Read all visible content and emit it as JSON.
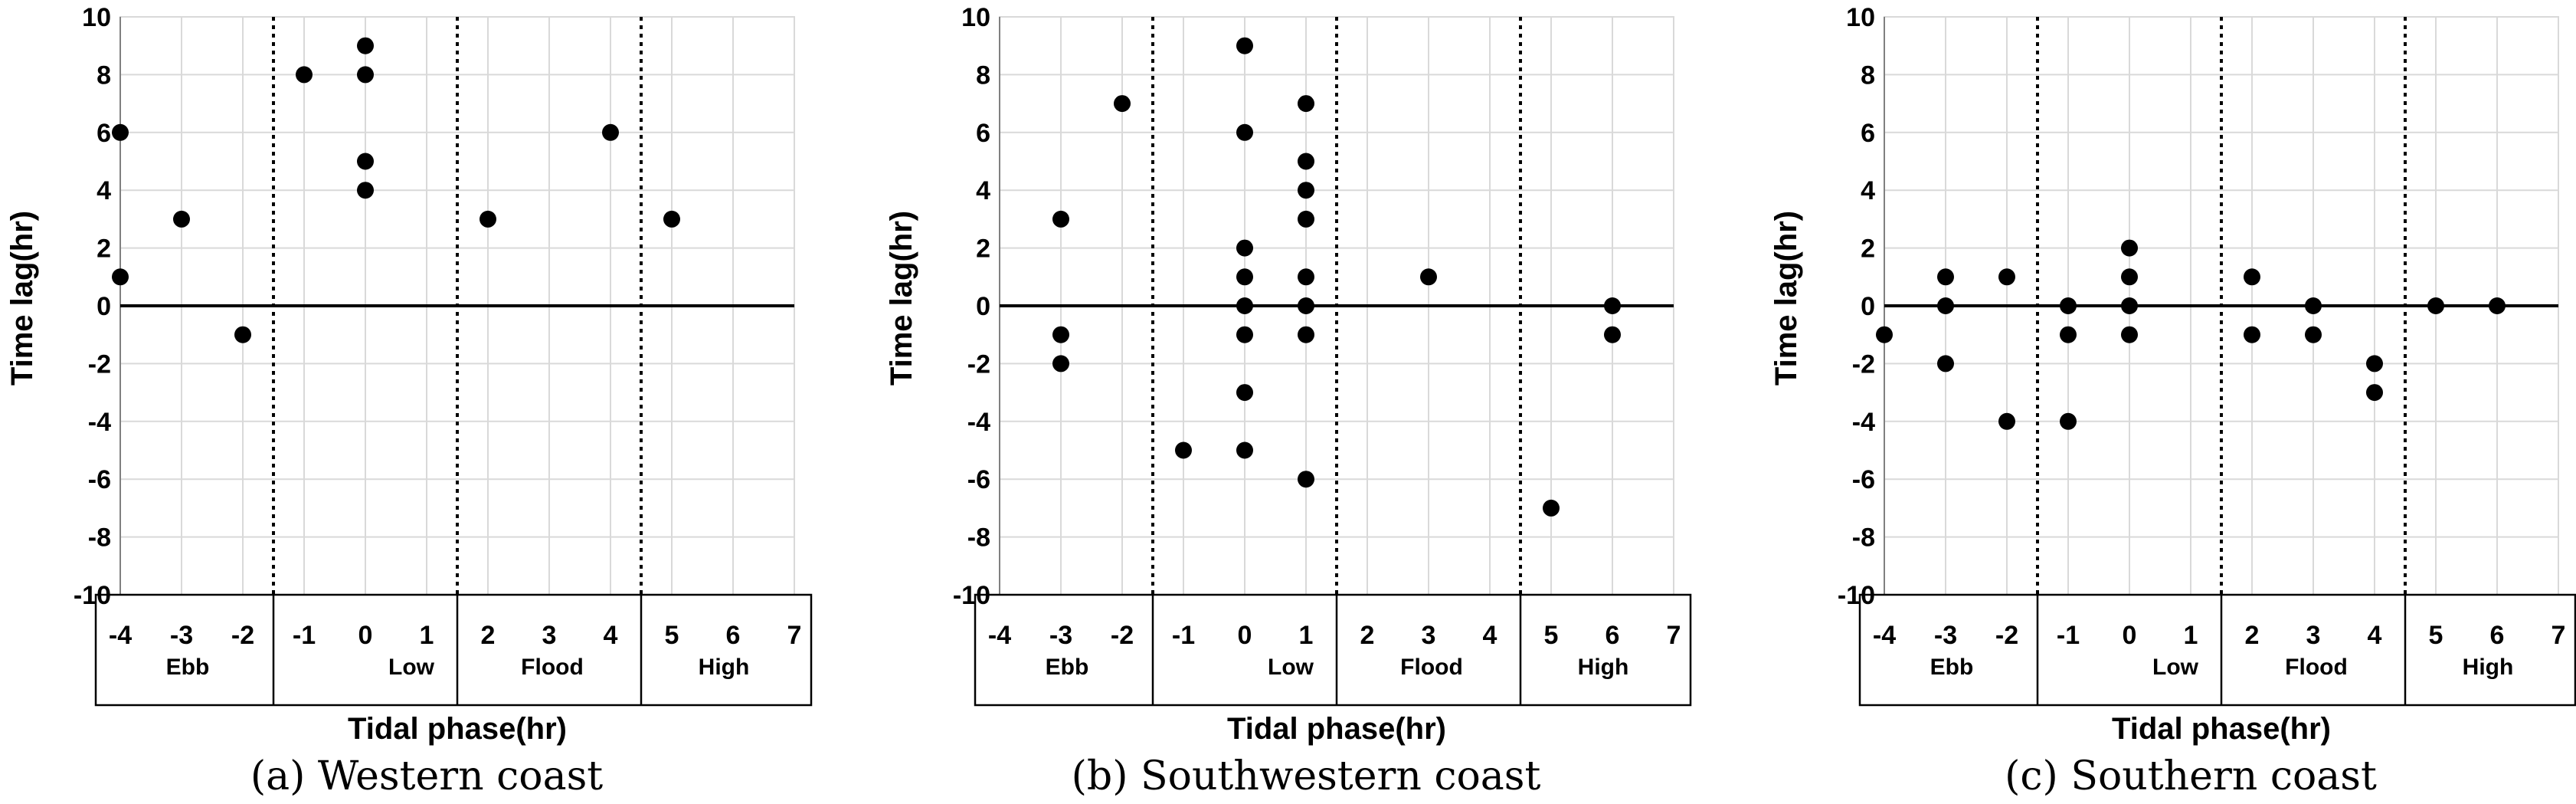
{
  "chart_data": [
    {
      "type": "scatter",
      "caption": "(a) Western coast",
      "xlabel": "Tidal phase(hr)",
      "ylabel": "Time lag(hr)",
      "xlim": [
        -4,
        7
      ],
      "ylim": [
        -10,
        10
      ],
      "xticks": [
        "-4",
        "-3",
        "-2",
        "-1",
        "0",
        "1",
        "2",
        "3",
        "4",
        "5",
        "6",
        "7"
      ],
      "yticks": [
        "10",
        "8",
        "6",
        "4",
        "2",
        "0",
        "-2",
        "-4",
        "-6",
        "-8",
        "-10"
      ],
      "phases": [
        "Ebb",
        "Low",
        "Flood",
        "High"
      ],
      "points": [
        {
          "x": -4,
          "y": 6
        },
        {
          "x": -4,
          "y": 1
        },
        {
          "x": -3,
          "y": 3
        },
        {
          "x": -2,
          "y": -1
        },
        {
          "x": -1,
          "y": 8
        },
        {
          "x": 0,
          "y": 9
        },
        {
          "x": 0,
          "y": 8
        },
        {
          "x": 0,
          "y": 5
        },
        {
          "x": 0,
          "y": 4
        },
        {
          "x": 2,
          "y": 3
        },
        {
          "x": 4,
          "y": 6
        },
        {
          "x": 5,
          "y": 3
        }
      ]
    },
    {
      "type": "scatter",
      "caption": "(b) Southwestern coast",
      "xlabel": "Tidal phase(hr)",
      "ylabel": "Time lag(hr)",
      "xlim": [
        -4,
        7
      ],
      "ylim": [
        -10,
        10
      ],
      "xticks": [
        "-4",
        "-3",
        "-2",
        "-1",
        "0",
        "1",
        "2",
        "3",
        "4",
        "5",
        "6",
        "7"
      ],
      "yticks": [
        "10",
        "8",
        "6",
        "4",
        "2",
        "0",
        "-2",
        "-4",
        "-6",
        "-8",
        "-10"
      ],
      "phases": [
        "Ebb",
        "Low",
        "Flood",
        "High"
      ],
      "points": [
        {
          "x": -3,
          "y": 3
        },
        {
          "x": -3,
          "y": -1
        },
        {
          "x": -3,
          "y": -2
        },
        {
          "x": -2,
          "y": 7
        },
        {
          "x": -1,
          "y": -5
        },
        {
          "x": 0,
          "y": 9
        },
        {
          "x": 0,
          "y": 6
        },
        {
          "x": 0,
          "y": 2
        },
        {
          "x": 0,
          "y": 1
        },
        {
          "x": 0,
          "y": 0
        },
        {
          "x": 0,
          "y": -1
        },
        {
          "x": 0,
          "y": -3
        },
        {
          "x": 0,
          "y": -5
        },
        {
          "x": 1,
          "y": 7
        },
        {
          "x": 1,
          "y": 5
        },
        {
          "x": 1,
          "y": 4
        },
        {
          "x": 1,
          "y": 3
        },
        {
          "x": 1,
          "y": 1
        },
        {
          "x": 1,
          "y": 0
        },
        {
          "x": 1,
          "y": -1
        },
        {
          "x": 1,
          "y": -6
        },
        {
          "x": 3,
          "y": 1
        },
        {
          "x": 5,
          "y": -7
        },
        {
          "x": 6,
          "y": 0
        },
        {
          "x": 6,
          "y": -1
        }
      ]
    },
    {
      "type": "scatter",
      "caption": "(c) Southern coast",
      "xlabel": "Tidal phase(hr)",
      "ylabel": "Time lag(hr)",
      "xlim": [
        -4,
        7
      ],
      "ylim": [
        -10,
        10
      ],
      "xticks": [
        "-4",
        "-3",
        "-2",
        "-1",
        "0",
        "1",
        "2",
        "3",
        "4",
        "5",
        "6",
        "7"
      ],
      "yticks": [
        "10",
        "8",
        "6",
        "4",
        "2",
        "0",
        "-2",
        "-4",
        "-6",
        "-8",
        "-10"
      ],
      "phases": [
        "Ebb",
        "Low",
        "Flood",
        "High"
      ],
      "points": [
        {
          "x": -4,
          "y": -1
        },
        {
          "x": -3,
          "y": 1
        },
        {
          "x": -3,
          "y": 0
        },
        {
          "x": -3,
          "y": -2
        },
        {
          "x": -2,
          "y": 1
        },
        {
          "x": -2,
          "y": -4
        },
        {
          "x": -1,
          "y": 0
        },
        {
          "x": -1,
          "y": -1
        },
        {
          "x": -1,
          "y": -4
        },
        {
          "x": 0,
          "y": 2
        },
        {
          "x": 0,
          "y": 1
        },
        {
          "x": 0,
          "y": 0
        },
        {
          "x": 0,
          "y": -1
        },
        {
          "x": 2,
          "y": 1
        },
        {
          "x": 2,
          "y": -1
        },
        {
          "x": 3,
          "y": 0
        },
        {
          "x": 3,
          "y": -1
        },
        {
          "x": 4,
          "y": -2
        },
        {
          "x": 4,
          "y": -3
        },
        {
          "x": 5,
          "y": 0
        },
        {
          "x": 6,
          "y": 0
        }
      ]
    }
  ]
}
